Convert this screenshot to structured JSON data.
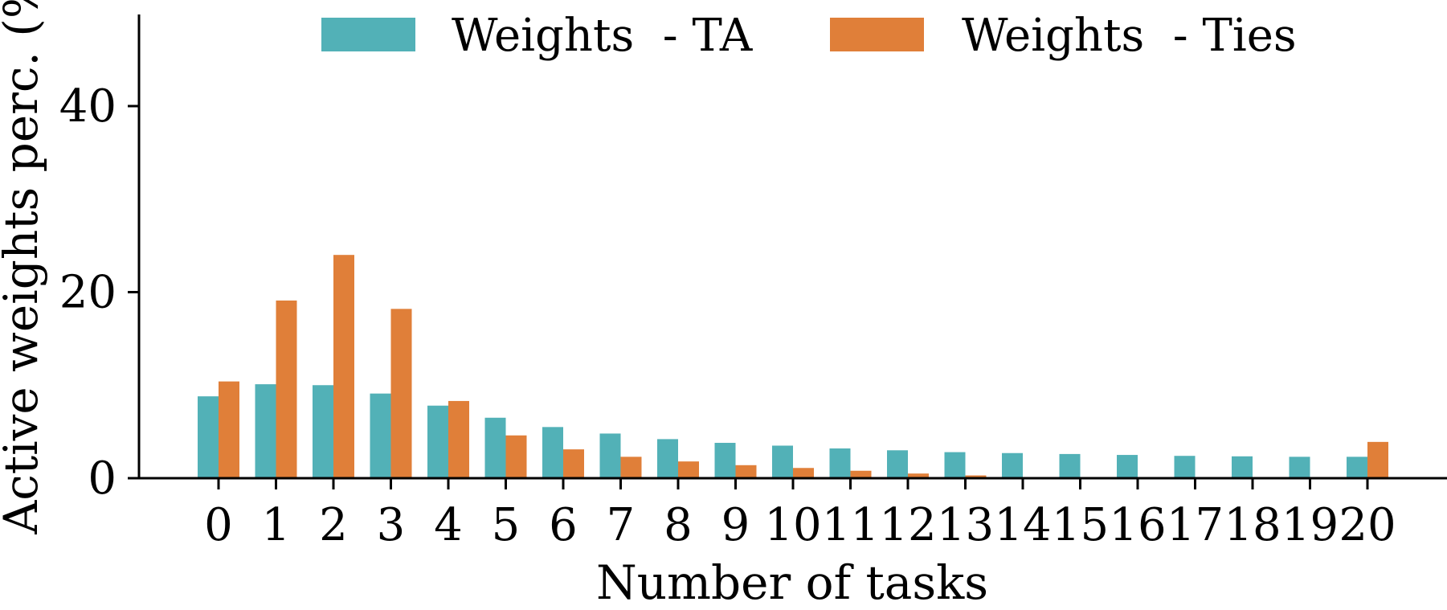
{
  "chart_data": {
    "type": "bar",
    "xlabel": "Number of tasks",
    "ylabel": "Active weights perc. (%)",
    "categories": [
      "0",
      "1",
      "2",
      "3",
      "4",
      "5",
      "6",
      "7",
      "8",
      "9",
      "10",
      "11",
      "12",
      "13",
      "14",
      "15",
      "16",
      "17",
      "18",
      "19",
      "20"
    ],
    "series": [
      {
        "name": "Weights  - TA",
        "color": "#52b1b7",
        "values": [
          8.8,
          10.1,
          10.0,
          9.1,
          7.8,
          6.5,
          5.5,
          4.8,
          4.2,
          3.8,
          3.5,
          3.2,
          3.0,
          2.8,
          2.7,
          2.6,
          2.5,
          2.4,
          2.35,
          2.3,
          2.3
        ]
      },
      {
        "name": "Weights  - Ties",
        "color": "#e07f39",
        "values": [
          10.4,
          19.1,
          24.0,
          18.2,
          8.3,
          4.6,
          3.1,
          2.3,
          1.8,
          1.4,
          1.1,
          0.8,
          0.5,
          0.3,
          0.1,
          0.05,
          0.03,
          0.02,
          0.02,
          0.02,
          3.9
        ]
      }
    ],
    "yticks": [
      0,
      20,
      40
    ],
    "ylim": [
      0,
      50
    ],
    "grid": false,
    "legend": "top"
  }
}
